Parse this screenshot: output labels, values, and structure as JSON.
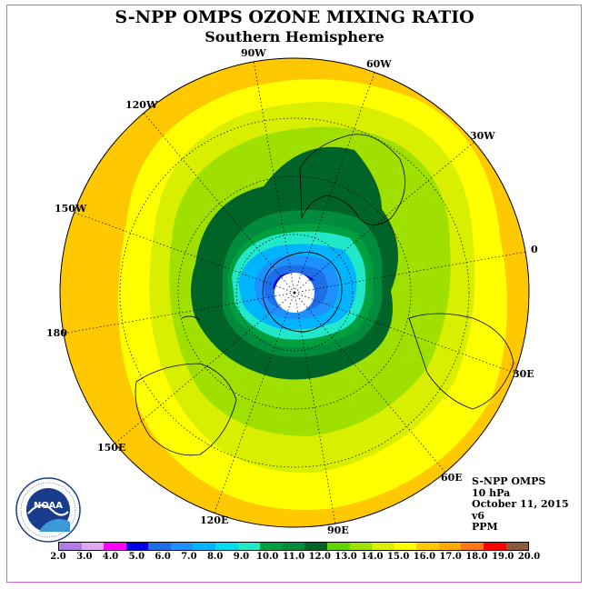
{
  "title": "S-NPP OMPS OZONE MIXING RATIO",
  "subtitle": "Southern Hemisphere",
  "longitude_labels": [
    "90W",
    "60W",
    "30W",
    "0",
    "30E",
    "60E",
    "90E",
    "120E",
    "150E",
    "180",
    "150W",
    "120W"
  ],
  "info": {
    "instrument": "S-NPP OMPS",
    "pressure": "10 hPa",
    "date": "October 11, 2015",
    "version": "v6",
    "units": "PPM"
  },
  "logo": {
    "text": "NOAA",
    "ring_text": "NATIONAL OCEANIC AND ATMOSPHERIC ADMINISTRATION",
    "bottom_text": "U.S. DEPARTMENT OF COMMERCE"
  },
  "colorbar": {
    "colors": [
      "#b07de6",
      "#e0a8f0",
      "#ff00ff",
      "#0000e0",
      "#1e6ee8",
      "#1e90ff",
      "#00b4ff",
      "#00dcf0",
      "#20e8c8",
      "#00a040",
      "#008c3c",
      "#006428",
      "#64d400",
      "#a0e000",
      "#d8f000",
      "#ffff00",
      "#ffc800",
      "#ffaa00",
      "#ff7814",
      "#ff0000",
      "#8c5a3c"
    ],
    "tick_labels": [
      "2.0",
      "3.0",
      "4.0",
      "5.0",
      "6.0",
      "7.0",
      "8.0",
      "9.0",
      "10.0",
      "11.0",
      "12.0",
      "13.0",
      "14.0",
      "15.0",
      "16.0",
      "17.0",
      "18.0",
      "19.0",
      "20.0"
    ]
  }
}
